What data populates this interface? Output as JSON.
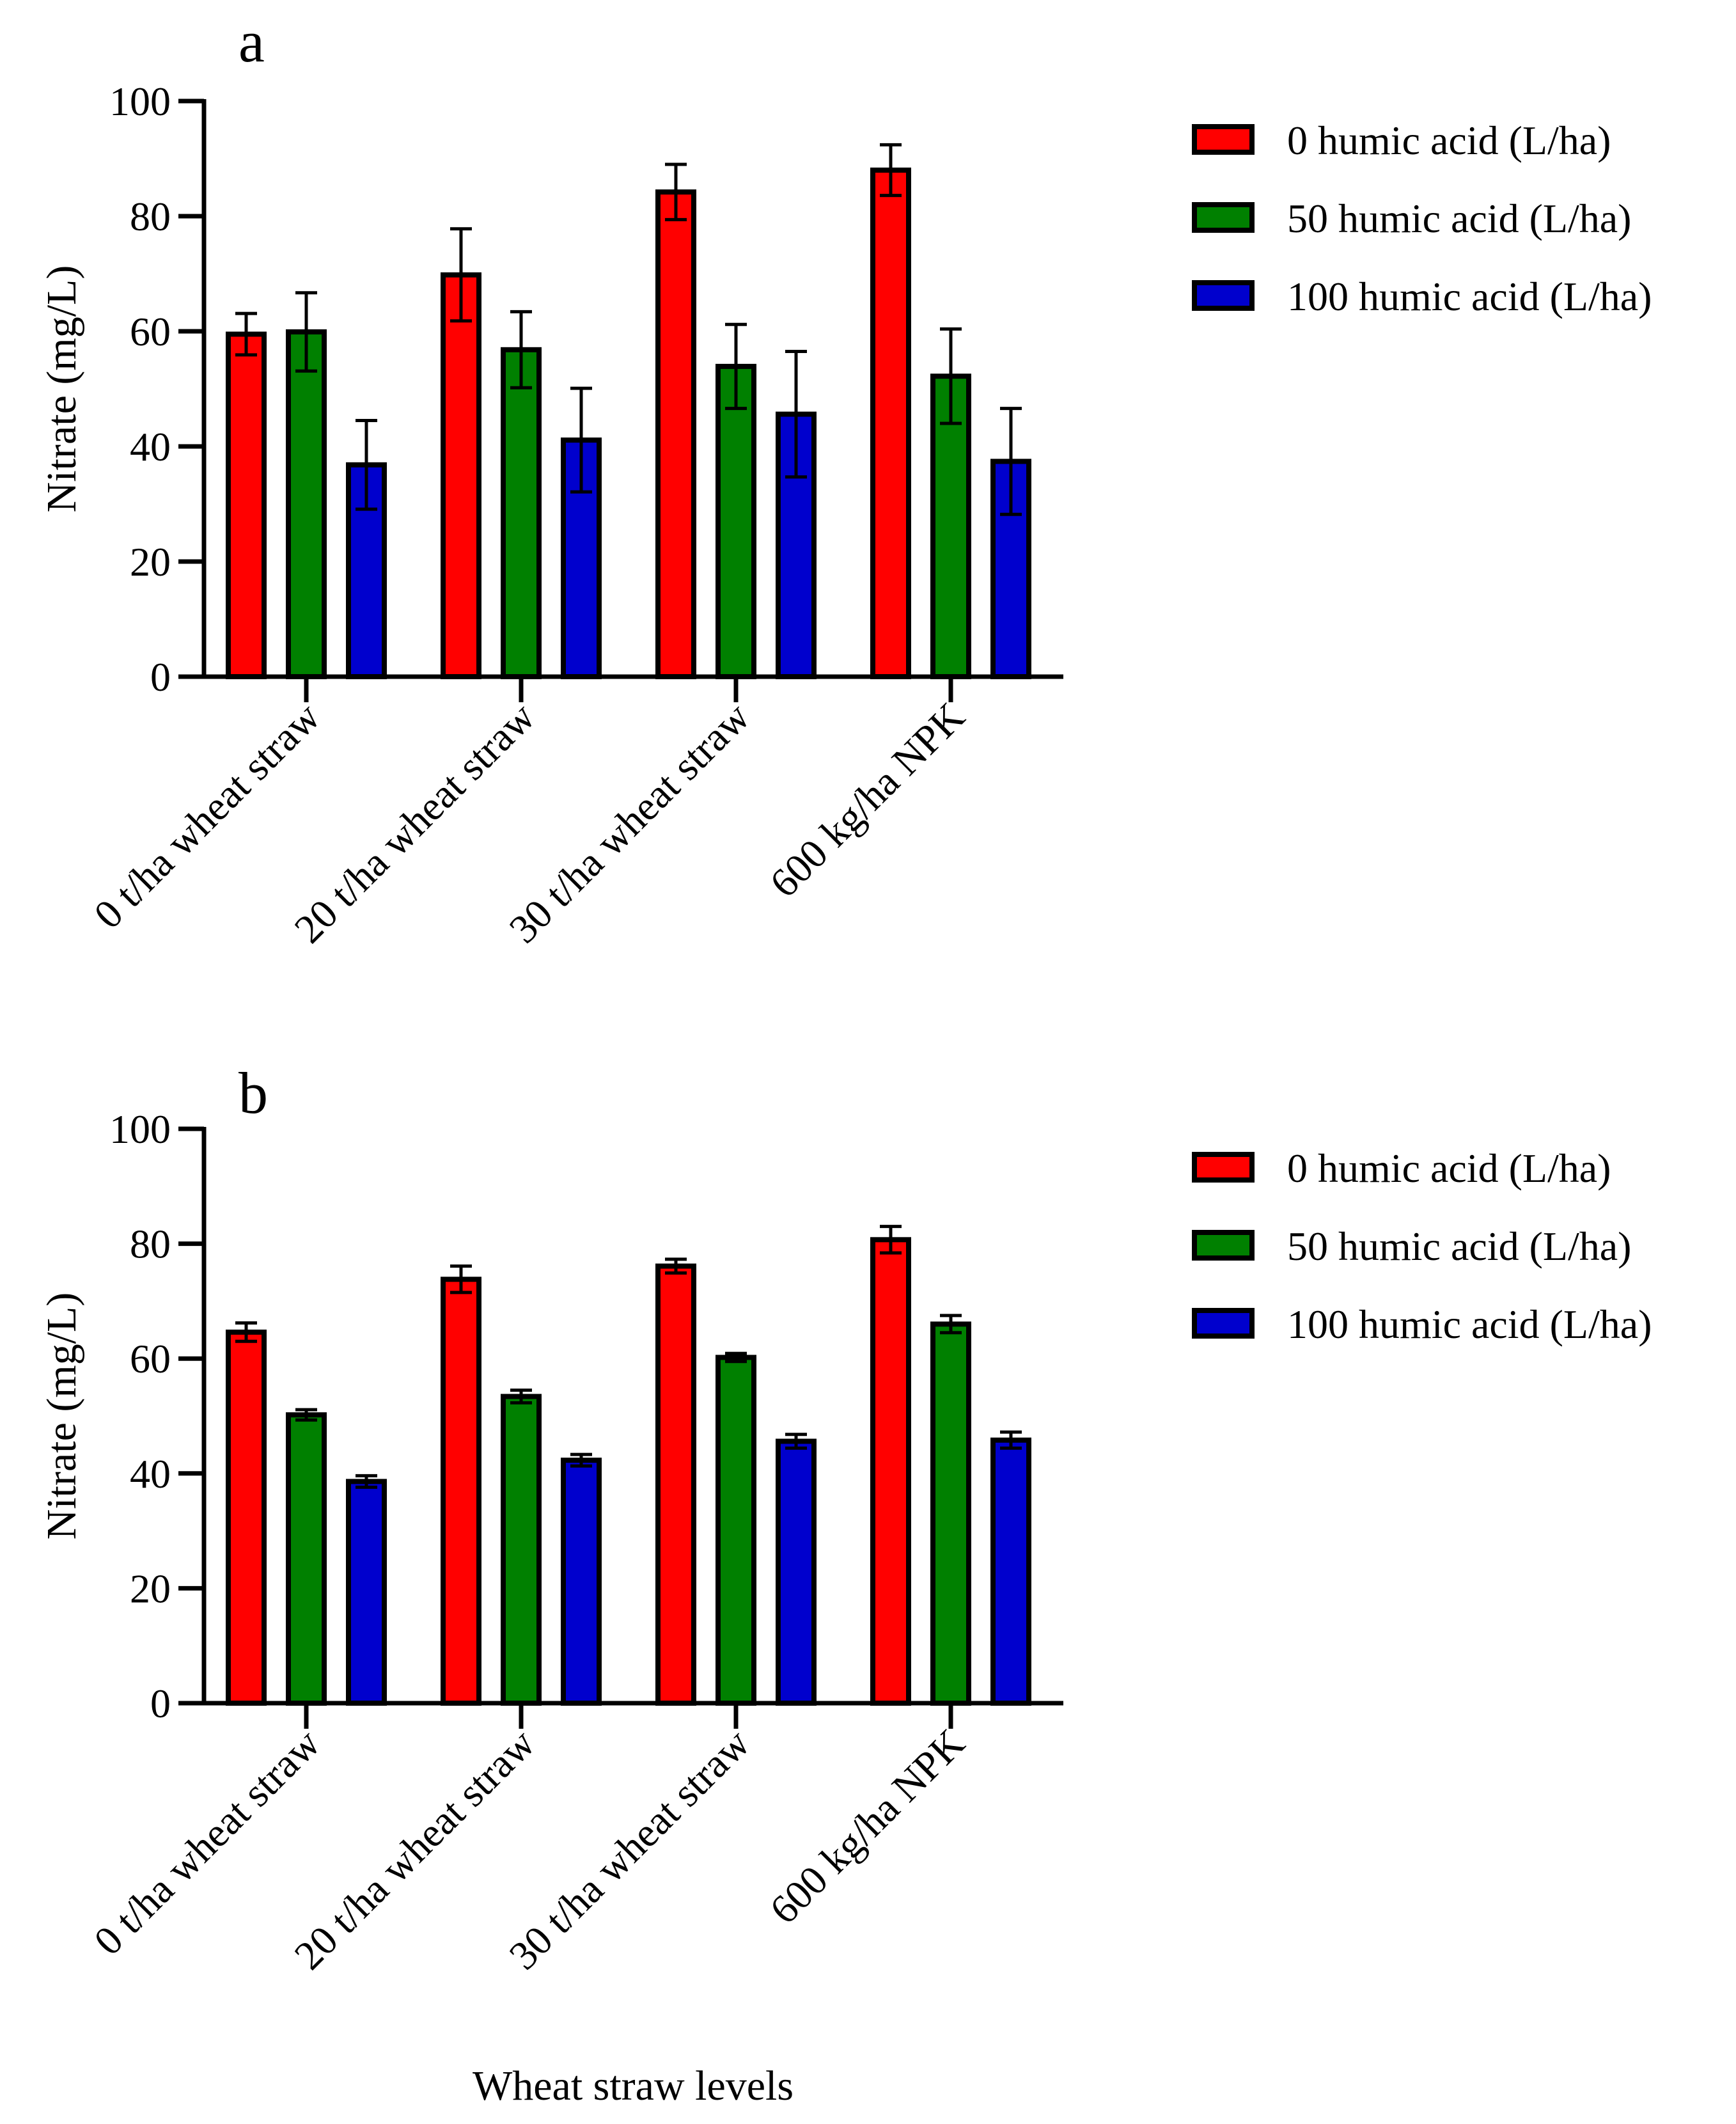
{
  "chart_data": [
    {
      "type": "bar",
      "panel_label": "a",
      "ylabel": "Nitrate (mg/L)",
      "xlabel": "",
      "ylim": [
        0,
        100
      ],
      "yticks": [
        0,
        20,
        40,
        60,
        80,
        100
      ],
      "grid": false,
      "legend_position": "top-right",
      "categories": [
        "0 t/ha wheat straw",
        "20 t/ha wheat straw",
        "30 t/ha wheat straw",
        "600 kg/ha NPK"
      ],
      "series": [
        {
          "name": "0 humic acid (L/ha)",
          "color": "#ff0000",
          "values": [
            59.5,
            69.8,
            84.2,
            88.0
          ],
          "errors": [
            3.6,
            8.0,
            4.8,
            4.4
          ]
        },
        {
          "name": "50 humic acid (L/ha)",
          "color": "#008000",
          "values": [
            59.9,
            56.8,
            53.9,
            52.2
          ],
          "errors": [
            6.8,
            6.6,
            7.3,
            8.2
          ]
        },
        {
          "name": "100 humic acid (L/ha)",
          "color": "#0000cd",
          "values": [
            36.8,
            41.1,
            45.6,
            37.4
          ],
          "errors": [
            7.7,
            9.0,
            10.9,
            9.2
          ]
        }
      ]
    },
    {
      "type": "bar",
      "panel_label": "b",
      "ylabel": "Nitrate (mg/L)",
      "xlabel": "Wheat straw levels",
      "ylim": [
        0,
        100
      ],
      "yticks": [
        0,
        20,
        40,
        60,
        80,
        100
      ],
      "grid": false,
      "legend_position": "top-right",
      "categories": [
        "0 t/ha wheat straw",
        "20 t/ha wheat straw",
        "30 t/ha wheat straw",
        "600 kg/ha NPK"
      ],
      "series": [
        {
          "name": "0 humic acid (L/ha)",
          "color": "#ff0000",
          "values": [
            64.6,
            73.8,
            76.1,
            80.7
          ],
          "errors": [
            1.6,
            2.3,
            1.2,
            2.3
          ]
        },
        {
          "name": "50 humic acid (L/ha)",
          "color": "#008000",
          "values": [
            50.2,
            53.4,
            60.2,
            66.0
          ],
          "errors": [
            0.9,
            1.1,
            0.7,
            1.5
          ]
        },
        {
          "name": "100 humic acid (L/ha)",
          "color": "#0000cd",
          "values": [
            38.6,
            42.3,
            45.6,
            45.8
          ],
          "errors": [
            1.0,
            1.0,
            1.2,
            1.4
          ]
        }
      ]
    }
  ]
}
